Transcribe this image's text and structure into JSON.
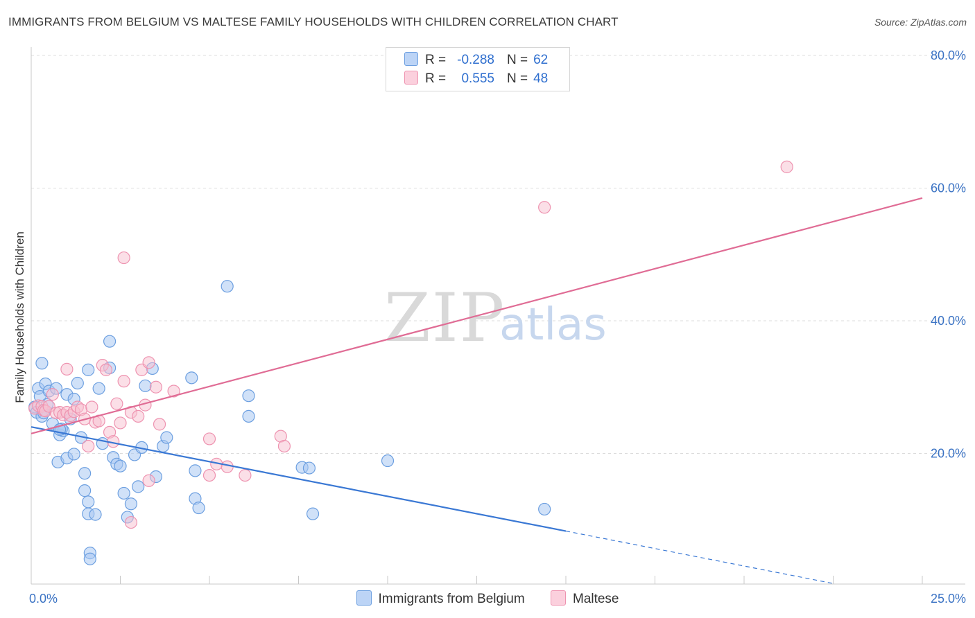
{
  "title": "IMMIGRANTS FROM BELGIUM VS MALTESE FAMILY HOUSEHOLDS WITH CHILDREN CORRELATION CHART",
  "source": "Source: ZipAtlas.com",
  "watermark": {
    "zip": "ZIP",
    "atlas": "atlas"
  },
  "legend": {
    "rows": [
      {
        "r_label": "R =",
        "r_value": "-0.288",
        "n_label": "N =",
        "n_value": "62"
      },
      {
        "r_label": "R =",
        "r_value": "0.555",
        "n_label": "N =",
        "n_value": "48"
      }
    ]
  },
  "colors": {
    "blue_fill": "#a9c8f2",
    "blue_stroke": "#6c9fe0",
    "blue_line": "#3a78d4",
    "pink_fill": "#f7bfd0",
    "pink_stroke": "#ee93b0",
    "pink_line": "#e06c95",
    "grid": "#dcdcdc",
    "axis_text": "#3b73c4"
  },
  "chart_data": {
    "type": "scatter",
    "title": "IMMIGRANTS FROM BELGIUM VS MALTESE FAMILY HOUSEHOLDS WITH CHILDREN CORRELATION CHART",
    "xlabel": "",
    "ylabel": "Family Households with Children",
    "xlim": [
      0,
      25
    ],
    "ylim": [
      0,
      80
    ],
    "x_tick_labels": [
      "0.0%",
      "25.0%"
    ],
    "y_ticks": [
      {
        "value": 20,
        "label": "20.0%"
      },
      {
        "value": 40,
        "label": "40.0%"
      },
      {
        "value": 60,
        "label": "60.0%"
      },
      {
        "value": 80,
        "label": "80.0%"
      }
    ],
    "series": [
      {
        "name": "Immigrants from Belgium",
        "r": -0.288,
        "n": 62,
        "trend": {
          "x0": 0,
          "y0": 24.0,
          "x1": 15.0,
          "y1": 8.3,
          "dash_to_x": 22.5,
          "dash_to_y": 0.4
        },
        "points": [
          [
            0.1,
            27.0
          ],
          [
            0.15,
            26.2
          ],
          [
            0.2,
            29.8
          ],
          [
            0.25,
            28.6
          ],
          [
            0.3,
            25.6
          ],
          [
            0.35,
            26.1
          ],
          [
            0.3,
            33.6
          ],
          [
            0.4,
            30.5
          ],
          [
            0.5,
            29.4
          ],
          [
            0.45,
            27.4
          ],
          [
            0.6,
            24.5
          ],
          [
            0.7,
            29.8
          ],
          [
            0.8,
            22.8
          ],
          [
            0.75,
            18.7
          ],
          [
            0.9,
            23.4
          ],
          [
            0.85,
            23.7
          ],
          [
            1.0,
            28.9
          ],
          [
            1.1,
            25.2
          ],
          [
            1.2,
            28.2
          ],
          [
            1.3,
            30.6
          ],
          [
            0.8,
            23.6
          ],
          [
            1.0,
            19.3
          ],
          [
            1.2,
            19.9
          ],
          [
            1.4,
            22.4
          ],
          [
            1.5,
            17.0
          ],
          [
            1.6,
            12.7
          ],
          [
            1.6,
            10.9
          ],
          [
            1.8,
            10.8
          ],
          [
            1.5,
            14.4
          ],
          [
            1.9,
            29.8
          ],
          [
            2.0,
            21.5
          ],
          [
            2.3,
            19.4
          ],
          [
            2.4,
            18.4
          ],
          [
            2.5,
            18.1
          ],
          [
            2.6,
            14.0
          ],
          [
            2.7,
            10.4
          ],
          [
            2.8,
            12.4
          ],
          [
            2.9,
            19.8
          ],
          [
            3.0,
            15.0
          ],
          [
            3.2,
            30.2
          ],
          [
            2.2,
            36.9
          ],
          [
            1.6,
            32.6
          ],
          [
            2.2,
            32.9
          ],
          [
            3.4,
            32.8
          ],
          [
            3.1,
            20.9
          ],
          [
            3.5,
            16.5
          ],
          [
            3.7,
            21.1
          ],
          [
            3.8,
            22.4
          ],
          [
            4.5,
            31.4
          ],
          [
            4.6,
            17.4
          ],
          [
            4.6,
            13.2
          ],
          [
            4.7,
            11.8
          ],
          [
            5.5,
            45.2
          ],
          [
            6.1,
            28.7
          ],
          [
            6.1,
            25.6
          ],
          [
            7.6,
            17.9
          ],
          [
            7.9,
            10.9
          ],
          [
            7.8,
            17.8
          ],
          [
            10.0,
            18.9
          ],
          [
            14.4,
            11.6
          ],
          [
            1.65,
            5.0
          ],
          [
            1.65,
            4.1
          ]
        ]
      },
      {
        "name": "Maltese",
        "r": 0.555,
        "n": 48,
        "trend": {
          "x0": 0,
          "y0": 23.0,
          "x1": 25.0,
          "y1": 58.5
        },
        "points": [
          [
            0.1,
            26.8
          ],
          [
            0.2,
            27.2
          ],
          [
            0.3,
            27.1
          ],
          [
            0.35,
            26.5
          ],
          [
            0.4,
            26.4
          ],
          [
            0.5,
            27.1
          ],
          [
            0.6,
            28.9
          ],
          [
            0.7,
            26.1
          ],
          [
            0.8,
            26.2
          ],
          [
            0.9,
            25.8
          ],
          [
            1.0,
            26.2
          ],
          [
            1.1,
            25.7
          ],
          [
            1.2,
            26.3
          ],
          [
            1.3,
            27.0
          ],
          [
            1.4,
            26.6
          ],
          [
            1.5,
            25.2
          ],
          [
            1.6,
            21.1
          ],
          [
            1.7,
            27.0
          ],
          [
            1.8,
            24.7
          ],
          [
            1.9,
            24.9
          ],
          [
            2.0,
            33.3
          ],
          [
            2.1,
            32.6
          ],
          [
            2.2,
            23.2
          ],
          [
            2.3,
            21.8
          ],
          [
            2.4,
            27.5
          ],
          [
            2.5,
            24.6
          ],
          [
            2.6,
            30.9
          ],
          [
            2.8,
            26.2
          ],
          [
            3.0,
            25.6
          ],
          [
            3.1,
            32.6
          ],
          [
            3.2,
            27.3
          ],
          [
            3.3,
            15.9
          ],
          [
            3.3,
            33.7
          ],
          [
            3.5,
            30.0
          ],
          [
            3.6,
            24.4
          ],
          [
            4.0,
            29.4
          ],
          [
            2.8,
            9.6
          ],
          [
            2.6,
            49.5
          ],
          [
            1.0,
            32.7
          ],
          [
            5.0,
            16.7
          ],
          [
            5.0,
            22.2
          ],
          [
            5.2,
            18.4
          ],
          [
            5.5,
            18.0
          ],
          [
            6.0,
            16.7
          ],
          [
            7.0,
            22.6
          ],
          [
            7.1,
            21.1
          ],
          [
            14.4,
            57.1
          ],
          [
            21.2,
            63.2
          ]
        ]
      }
    ]
  }
}
